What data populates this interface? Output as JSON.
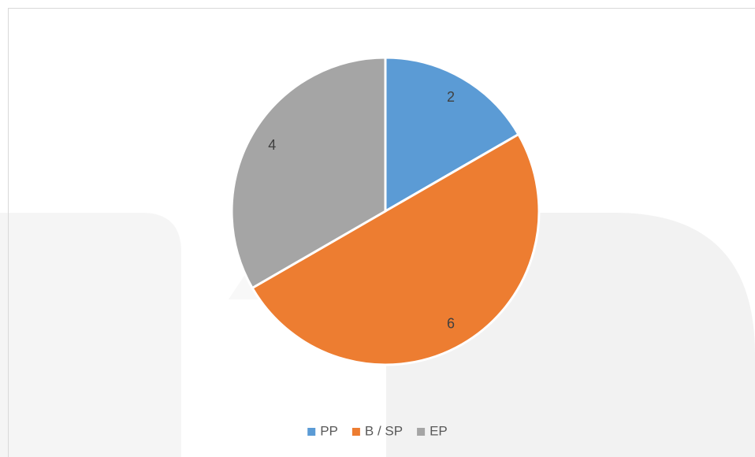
{
  "chart_data": {
    "type": "pie",
    "categories": [
      "PP",
      "B / SP",
      "EP"
    ],
    "values": [
      2,
      6,
      4
    ],
    "colors": [
      "#5b9bd5",
      "#ed7d31",
      "#a5a5a5"
    ],
    "legend": "bottom"
  }
}
